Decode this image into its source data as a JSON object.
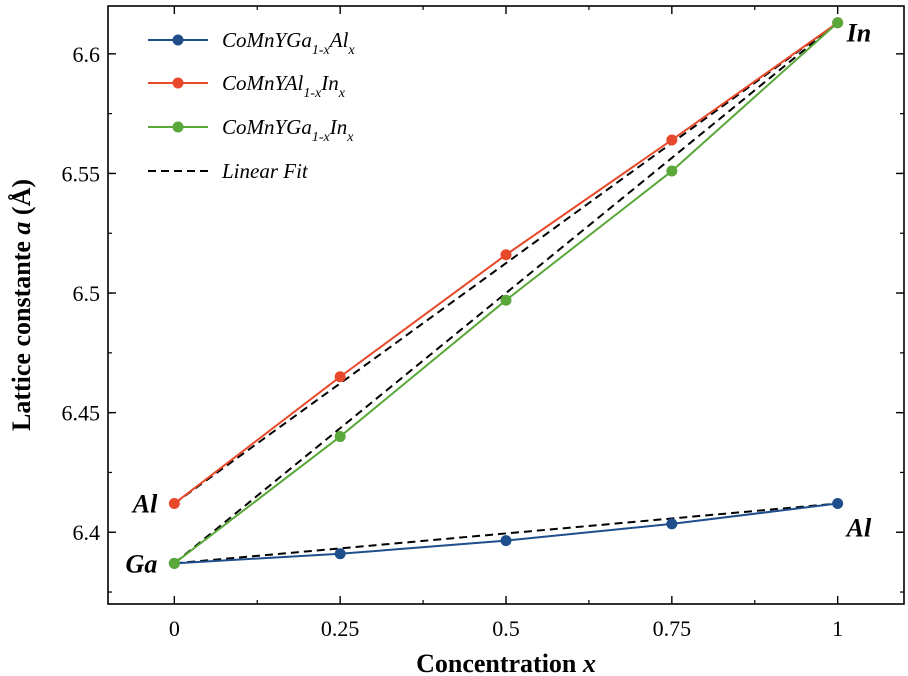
{
  "chart_data": {
    "type": "line",
    "xlabel": "Concentration",
    "xlabel_var": "x",
    "ylabel": "Lattice constante",
    "ylabel_var": "a",
    "ylabel_unit": "(Å)",
    "xlim": [
      -0.1,
      1.1
    ],
    "ylim": [
      6.37,
      6.62
    ],
    "x_ticks": [
      0,
      0.25,
      0.5,
      0.75,
      1
    ],
    "x_tick_labels": [
      "0",
      "0.25",
      "0.5",
      "0.75",
      "1"
    ],
    "y_ticks": [
      6.4,
      6.45,
      6.5,
      6.55,
      6.6
    ],
    "y_tick_labels": [
      "6.4",
      "6.45",
      "6.5",
      "6.55",
      "6.6"
    ],
    "x": [
      0,
      0.25,
      0.5,
      0.75,
      1
    ],
    "series": [
      {
        "name": "CoMnYGa1-xAlx",
        "legend_parts": [
          [
            "CoMnYGa",
            ""
          ],
          [
            "1-x",
            "sub"
          ],
          [
            "Al",
            ""
          ],
          [
            "x",
            "sub"
          ]
        ],
        "color": "#1f4e8c",
        "values": [
          6.387,
          6.391,
          6.3965,
          6.4035,
          6.412
        ]
      },
      {
        "name": "CoMnYAl1-xInx",
        "legend_parts": [
          [
            "CoMnYAl",
            ""
          ],
          [
            "1-x",
            "sub"
          ],
          [
            "In",
            ""
          ],
          [
            "x",
            "sub"
          ]
        ],
        "color": "#e8492b",
        "values": [
          6.412,
          6.465,
          6.516,
          6.564,
          6.613
        ]
      },
      {
        "name": "CoMnYGa1-xInx",
        "legend_parts": [
          [
            "CoMnYGa",
            ""
          ],
          [
            "1-x",
            "sub"
          ],
          [
            "In",
            ""
          ],
          [
            "x",
            "sub"
          ]
        ],
        "color": "#5aa83a",
        "values": [
          6.387,
          6.44,
          6.497,
          6.551,
          6.613
        ]
      }
    ],
    "linear_fit": {
      "name": "Linear Fit",
      "color": "#000000",
      "lines": [
        {
          "x": [
            0,
            1
          ],
          "y": [
            6.387,
            6.412
          ]
        },
        {
          "x": [
            0,
            1
          ],
          "y": [
            6.412,
            6.613
          ]
        },
        {
          "x": [
            0,
            1
          ],
          "y": [
            6.387,
            6.613
          ]
        }
      ]
    },
    "annotations": [
      {
        "text": "Al",
        "x": 0,
        "y": 6.412,
        "anchor": "left"
      },
      {
        "text": "Ga",
        "x": 0,
        "y": 6.387,
        "anchor": "left"
      },
      {
        "text": "In",
        "x": 1,
        "y": 6.613,
        "anchor": "right"
      },
      {
        "text": "Al",
        "x": 1,
        "y": 6.412,
        "anchor": "right-below"
      }
    ],
    "legend_position": "top-left",
    "grid": false
  }
}
